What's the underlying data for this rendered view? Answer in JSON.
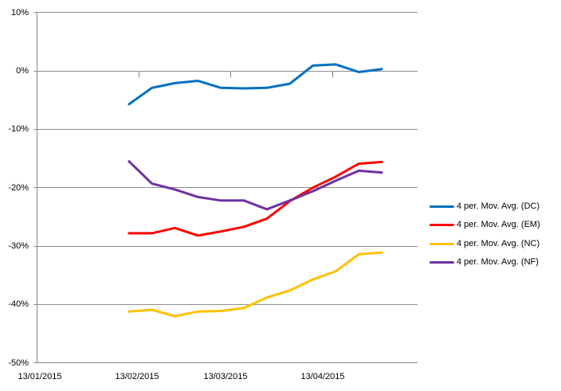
{
  "chart_data": {
    "type": "line",
    "title": "",
    "x": [
      "10/02/2015",
      "17/02/2015",
      "24/02/2015",
      "03/03/2015",
      "10/03/2015",
      "17/03/2015",
      "24/03/2015",
      "31/03/2015",
      "07/04/2015",
      "14/04/2015",
      "21/04/2015",
      "28/04/2015"
    ],
    "x_day_offsets": [
      28,
      35,
      42,
      49,
      56,
      63,
      70,
      77,
      84,
      91,
      98,
      105
    ],
    "series": [
      {
        "name": "4 per. Mov. Avg. (DC)",
        "color": "#0070C0",
        "values": [
          -5.7,
          -2.9,
          -2.1,
          -1.7,
          -2.9,
          -3.0,
          -2.9,
          -2.2,
          0.9,
          1.1,
          -0.2,
          0.3
        ]
      },
      {
        "name": "4 per. Mov. Avg. (EM)",
        "color": "#FF0000",
        "values": [
          -27.8,
          -27.8,
          -26.9,
          -28.2,
          -27.5,
          -26.7,
          -25.3,
          -22.3,
          -20.0,
          -18.1,
          -15.9,
          -15.6
        ]
      },
      {
        "name": "4 per. Mov. Avg. (NC)",
        "color": "#FFC000",
        "values": [
          -41.2,
          -40.9,
          -42.0,
          -41.2,
          -41.1,
          -40.6,
          -38.8,
          -37.6,
          -35.7,
          -34.3,
          -31.4,
          -31.1
        ]
      },
      {
        "name": "4 per. Mov. Avg. (NF)",
        "color": "#7030A0",
        "values": [
          -15.5,
          -19.3,
          -20.3,
          -21.6,
          -22.2,
          -22.2,
          -23.7,
          -22.2,
          -20.6,
          -18.8,
          -17.1,
          -17.4
        ]
      }
    ],
    "y_axis": {
      "min": -50,
      "max": 10,
      "step": 10,
      "unit": "%",
      "tick_labels": [
        "10%",
        "0%",
        "-10%",
        "-20%",
        "-30%",
        "-40%",
        "-50%"
      ]
    },
    "x_axis": {
      "tick_labels": [
        "13/01/2015",
        "13/02/2015",
        "13/03/2015",
        "13/04/2015"
      ],
      "tick_day_offsets": [
        0,
        31,
        59,
        90
      ]
    },
    "grid": true,
    "legend_position": "right",
    "colors": {
      "gridline": "#8E8E8E",
      "axis": "#868686",
      "text": "#000000",
      "background": "#FFFFFF"
    }
  }
}
